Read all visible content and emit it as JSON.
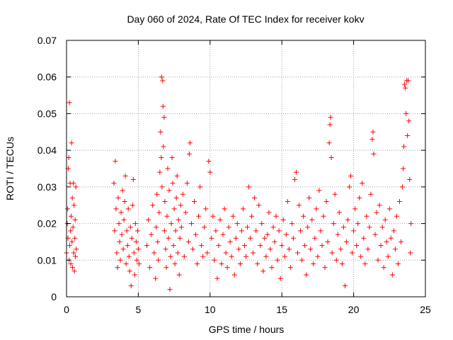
{
  "chart_data": {
    "type": "scatter",
    "title": "Day 060 of 2024, Rate Of TEC Index for receiver kokv",
    "xlabel": "GPS time / hours",
    "ylabel": "ROTI / TECUs",
    "xlim": [
      0,
      25
    ],
    "ylim": [
      0,
      0.07
    ],
    "grid": true,
    "xticks": [
      0,
      5,
      10,
      15,
      20,
      25
    ],
    "xtick_labels": [
      "0",
      "5",
      "10",
      "15",
      "20",
      "25"
    ],
    "yticks": [
      0,
      0.01,
      0.02,
      0.03,
      0.04,
      0.05,
      0.06,
      0.07
    ],
    "ytick_labels": [
      "0",
      "0.01",
      "0.02",
      "0.03",
      "0.04",
      "0.05",
      "0.06",
      "0.07"
    ],
    "marker": "plus",
    "marker_color": "#ff0000",
    "series": [
      {
        "name": "ROTI",
        "points": [
          [
            0.0,
            0.012
          ],
          [
            0.05,
            0.02
          ],
          [
            0.08,
            0.024
          ],
          [
            0.1,
            0.016
          ],
          [
            0.12,
            0.035
          ],
          [
            0.15,
            0.038
          ],
          [
            0.18,
            0.01
          ],
          [
            0.2,
            0.053
          ],
          [
            0.22,
            0.014
          ],
          [
            0.25,
            0.031
          ],
          [
            0.28,
            0.018
          ],
          [
            0.3,
            0.009
          ],
          [
            0.32,
            0.022
          ],
          [
            0.35,
            0.042
          ],
          [
            0.38,
            0.015
          ],
          [
            0.4,
            0.027
          ],
          [
            0.42,
            0.008
          ],
          [
            0.45,
            0.019
          ],
          [
            0.48,
            0.031
          ],
          [
            0.5,
            0.012
          ],
          [
            0.52,
            0.025
          ],
          [
            0.55,
            0.007
          ],
          [
            0.58,
            0.016
          ],
          [
            0.6,
            0.021
          ],
          [
            0.62,
            0.011
          ],
          [
            0.65,
            0.03
          ],
          [
            0.68,
            0.013
          ],
          [
            3.3,
            0.031
          ],
          [
            3.35,
            0.018
          ],
          [
            3.4,
            0.037
          ],
          [
            3.45,
            0.024
          ],
          [
            3.5,
            0.012
          ],
          [
            3.55,
            0.008
          ],
          [
            3.6,
            0.027
          ],
          [
            3.65,
            0.02
          ],
          [
            3.7,
            0.015
          ],
          [
            3.75,
            0.01
          ],
          [
            3.8,
            0.023
          ],
          [
            3.85,
            0.017
          ],
          [
            3.9,
            0.029
          ],
          [
            3.95,
            0.013
          ],
          [
            4.0,
            0.021
          ],
          [
            4.05,
            0.026
          ],
          [
            4.1,
            0.033
          ],
          [
            4.15,
            0.009
          ],
          [
            4.2,
            0.018
          ],
          [
            4.25,
            0.014
          ],
          [
            4.3,
            0.024
          ],
          [
            4.35,
            0.011
          ],
          [
            4.4,
            0.007
          ],
          [
            4.45,
            0.019
          ],
          [
            4.5,
            0.003
          ],
          [
            4.55,
            0.016
          ],
          [
            4.6,
            0.025
          ],
          [
            4.65,
            0.032
          ],
          [
            4.7,
            0.012
          ],
          [
            4.75,
            0.006
          ],
          [
            4.8,
            0.02
          ],
          [
            4.85,
            0.015
          ],
          [
            4.9,
            0.01
          ],
          [
            4.95,
            0.018
          ],
          [
            5.0,
            0.013
          ],
          [
            5.05,
            0.009
          ],
          [
            5.6,
            0.014
          ],
          [
            5.7,
            0.021
          ],
          [
            5.8,
            0.008
          ],
          [
            5.9,
            0.017
          ],
          [
            6.0,
            0.025
          ],
          [
            6.1,
            0.012
          ],
          [
            6.2,
            0.005
          ],
          [
            6.25,
            0.019
          ],
          [
            6.3,
            0.028
          ],
          [
            6.35,
            0.015
          ],
          [
            6.4,
            0.01
          ],
          [
            6.45,
            0.023
          ],
          [
            6.5,
            0.034
          ],
          [
            6.55,
            0.045
          ],
          [
            6.6,
            0.038
          ],
          [
            6.62,
            0.06
          ],
          [
            6.65,
            0.03
          ],
          [
            6.7,
            0.059
          ],
          [
            6.72,
            0.052
          ],
          [
            6.75,
            0.041
          ],
          [
            6.8,
            0.049
          ],
          [
            6.82,
            0.018
          ],
          [
            6.85,
            0.026
          ],
          [
            6.9,
            0.013
          ],
          [
            6.95,
            0.008
          ],
          [
            7.0,
            0.022
          ],
          [
            7.05,
            0.035
          ],
          [
            7.1,
            0.016
          ],
          [
            7.15,
            0.029
          ],
          [
            7.2,
            0.002
          ],
          [
            7.25,
            0.011
          ],
          [
            7.3,
            0.02
          ],
          [
            7.35,
            0.038
          ],
          [
            7.4,
            0.031
          ],
          [
            7.45,
            0.014
          ],
          [
            7.5,
            0.024
          ],
          [
            7.55,
            0.009
          ],
          [
            7.6,
            0.018
          ],
          [
            7.65,
            0.027
          ],
          [
            7.7,
            0.033
          ],
          [
            7.75,
            0.012
          ],
          [
            7.8,
            0.021
          ],
          [
            7.85,
            0.006
          ],
          [
            7.9,
            0.016
          ],
          [
            7.95,
            0.025
          ],
          [
            8.0,
            0.019
          ],
          [
            8.1,
            0.028
          ],
          [
            8.2,
            0.011
          ],
          [
            8.3,
            0.023
          ],
          [
            8.4,
            0.031
          ],
          [
            8.5,
            0.015
          ],
          [
            8.55,
            0.039
          ],
          [
            8.6,
            0.042
          ],
          [
            8.7,
            0.02
          ],
          [
            8.8,
            0.013
          ],
          [
            8.9,
            0.026
          ],
          [
            9.0,
            0.017
          ],
          [
            9.1,
            0.009
          ],
          [
            9.2,
            0.022
          ],
          [
            9.3,
            0.03
          ],
          [
            9.4,
            0.014
          ],
          [
            9.5,
            0.011
          ],
          [
            9.6,
            0.019
          ],
          [
            9.7,
            0.024
          ],
          [
            9.8,
            0.012
          ],
          [
            9.9,
            0.037
          ],
          [
            10.0,
            0.034
          ],
          [
            10.1,
            0.016
          ],
          [
            10.2,
            0.022
          ],
          [
            10.3,
            0.01
          ],
          [
            10.4,
            0.018
          ],
          [
            10.5,
            0.005
          ],
          [
            10.6,
            0.014
          ],
          [
            10.7,
            0.021
          ],
          [
            10.8,
            0.009
          ],
          [
            10.9,
            0.017
          ],
          [
            11.0,
            0.024
          ],
          [
            11.1,
            0.012
          ],
          [
            11.2,
            0.008
          ],
          [
            11.3,
            0.019
          ],
          [
            11.4,
            0.015
          ],
          [
            11.5,
            0.011
          ],
          [
            11.6,
            0.022
          ],
          [
            11.7,
            0.006
          ],
          [
            11.8,
            0.016
          ],
          [
            11.9,
            0.02
          ],
          [
            12.0,
            0.013
          ],
          [
            12.1,
            0.009
          ],
          [
            12.2,
            0.018
          ],
          [
            12.3,
            0.024
          ],
          [
            12.4,
            0.014
          ],
          [
            12.5,
            0.011
          ],
          [
            12.6,
            0.019
          ],
          [
            12.7,
            0.03
          ],
          [
            12.8,
            0.016
          ],
          [
            12.9,
            0.022
          ],
          [
            13.0,
            0.012
          ],
          [
            13.1,
            0.027
          ],
          [
            13.2,
            0.018
          ],
          [
            13.3,
            0.009
          ],
          [
            13.4,
            0.025
          ],
          [
            13.5,
            0.014
          ],
          [
            13.6,
            0.02
          ],
          [
            13.7,
            0.007
          ],
          [
            13.8,
            0.016
          ],
          [
            13.9,
            0.011
          ],
          [
            14.0,
            0.017
          ],
          [
            14.1,
            0.023
          ],
          [
            14.2,
            0.013
          ],
          [
            14.3,
            0.008
          ],
          [
            14.4,
            0.019
          ],
          [
            14.5,
            0.015
          ],
          [
            14.6,
            0.022
          ],
          [
            14.7,
            0.01
          ],
          [
            14.8,
            0.018
          ],
          [
            14.9,
            0.005
          ],
          [
            15.0,
            0.014
          ],
          [
            15.1,
            0.021
          ],
          [
            15.2,
            0.011
          ],
          [
            15.3,
            0.017
          ],
          [
            15.4,
            0.026
          ],
          [
            15.5,
            0.013
          ],
          [
            15.6,
            0.008
          ],
          [
            15.7,
            0.02
          ],
          [
            15.8,
            0.016
          ],
          [
            15.9,
            0.032
          ],
          [
            16.0,
            0.034
          ],
          [
            16.1,
            0.012
          ],
          [
            16.2,
            0.025
          ],
          [
            16.3,
            0.018
          ],
          [
            16.4,
            0.01
          ],
          [
            16.5,
            0.022
          ],
          [
            16.6,
            0.014
          ],
          [
            16.7,
            0.006
          ],
          [
            16.8,
            0.019
          ],
          [
            16.9,
            0.027
          ],
          [
            17.0,
            0.013
          ],
          [
            17.1,
            0.021
          ],
          [
            17.2,
            0.009
          ],
          [
            17.3,
            0.016
          ],
          [
            17.4,
            0.024
          ],
          [
            17.5,
            0.011
          ],
          [
            17.6,
            0.029
          ],
          [
            17.7,
            0.018
          ],
          [
            17.8,
            0.014
          ],
          [
            17.9,
            0.022
          ],
          [
            18.0,
            0.008
          ],
          [
            18.1,
            0.026
          ],
          [
            18.2,
            0.015
          ],
          [
            18.3,
            0.042
          ],
          [
            18.35,
            0.047
          ],
          [
            18.4,
            0.049
          ],
          [
            18.45,
            0.038
          ],
          [
            18.5,
            0.012
          ],
          [
            18.6,
            0.02
          ],
          [
            18.7,
            0.028
          ],
          [
            18.8,
            0.01
          ],
          [
            18.9,
            0.017
          ],
          [
            19.0,
            0.023
          ],
          [
            19.1,
            0.013
          ],
          [
            19.2,
            0.009
          ],
          [
            19.3,
            0.019
          ],
          [
            19.4,
            0.003
          ],
          [
            19.5,
            0.015
          ],
          [
            19.6,
            0.021
          ],
          [
            19.7,
            0.03
          ],
          [
            19.8,
            0.033
          ],
          [
            19.9,
            0.012
          ],
          [
            20.0,
            0.018
          ],
          [
            20.1,
            0.024
          ],
          [
            20.2,
            0.014
          ],
          [
            20.3,
            0.02
          ],
          [
            20.4,
            0.027
          ],
          [
            20.5,
            0.011
          ],
          [
            20.6,
            0.031
          ],
          [
            20.7,
            0.016
          ],
          [
            20.8,
            0.009
          ],
          [
            20.9,
            0.022
          ],
          [
            21.0,
            0.013
          ],
          [
            21.1,
            0.019
          ],
          [
            21.2,
            0.028
          ],
          [
            21.3,
            0.043
          ],
          [
            21.35,
            0.045
          ],
          [
            21.4,
            0.039
          ],
          [
            21.5,
            0.017
          ],
          [
            21.6,
            0.023
          ],
          [
            21.7,
            0.01
          ],
          [
            21.8,
            0.025
          ],
          [
            21.9,
            0.014
          ],
          [
            22.0,
            0.019
          ],
          [
            22.1,
            0.008
          ],
          [
            22.2,
            0.021
          ],
          [
            22.3,
            0.015
          ],
          [
            22.4,
            0.011
          ],
          [
            22.5,
            0.024
          ],
          [
            22.6,
            0.016
          ],
          [
            22.7,
            0.006
          ],
          [
            22.8,
            0.018
          ],
          [
            22.9,
            0.013
          ],
          [
            23.0,
            0.022
          ],
          [
            23.1,
            0.009
          ],
          [
            23.2,
            0.026
          ],
          [
            23.3,
            0.015
          ],
          [
            23.4,
            0.03
          ],
          [
            23.45,
            0.035
          ],
          [
            23.5,
            0.041
          ],
          [
            23.55,
            0.058
          ],
          [
            23.6,
            0.057
          ],
          [
            23.65,
            0.05
          ],
          [
            23.7,
            0.059
          ],
          [
            23.75,
            0.044
          ],
          [
            23.8,
            0.059
          ],
          [
            23.85,
            0.048
          ],
          [
            23.9,
            0.032
          ],
          [
            23.95,
            0.012
          ],
          [
            24.0,
            0.02
          ]
        ]
      }
    ]
  }
}
